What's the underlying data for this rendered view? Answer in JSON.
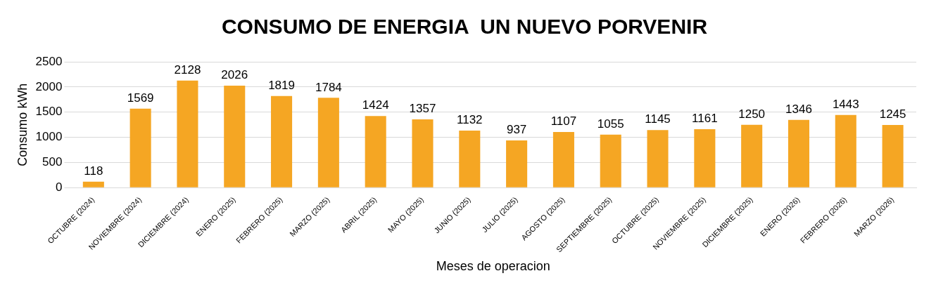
{
  "chart_data": {
    "type": "bar",
    "title": "CONSUMO DE ENERGIA  UN NUEVO PORVENIR",
    "xlabel": "Meses de operacion",
    "ylabel": "Consumo kWh",
    "categories": [
      "OCTUBRE (2024)",
      "NOVIEMBRE (2024)",
      "DICIEMBRE (2024)",
      "ENERO (2025)",
      "FEBRERO (2025)",
      "MARZO (2025)",
      "ABRIL (2025)",
      "MAYO (2025)",
      "JUNIO (2025)",
      "JULIO (2025)",
      "AGOSTO (2025)",
      "SEPTIEMBRE (2025)",
      "OCTUBRE (2025)",
      "NOVIEMBRE (2025)",
      "DICIEMBRE (2025)",
      "ENERO (2026)",
      "FEBRERO (2026)",
      "MARZO (2026)"
    ],
    "values": [
      118,
      1569,
      2128,
      2026,
      1819,
      1784,
      1424,
      1357,
      1132,
      937,
      1107,
      1055,
      1145,
      1161,
      1250,
      1346,
      1443,
      1245
    ],
    "color": "#f5a623",
    "ylim": [
      0,
      2500
    ],
    "yticks": [
      0,
      500,
      1000,
      1500,
      2000,
      2500
    ],
    "grid": "y",
    "data_labels": true,
    "legend": false
  }
}
